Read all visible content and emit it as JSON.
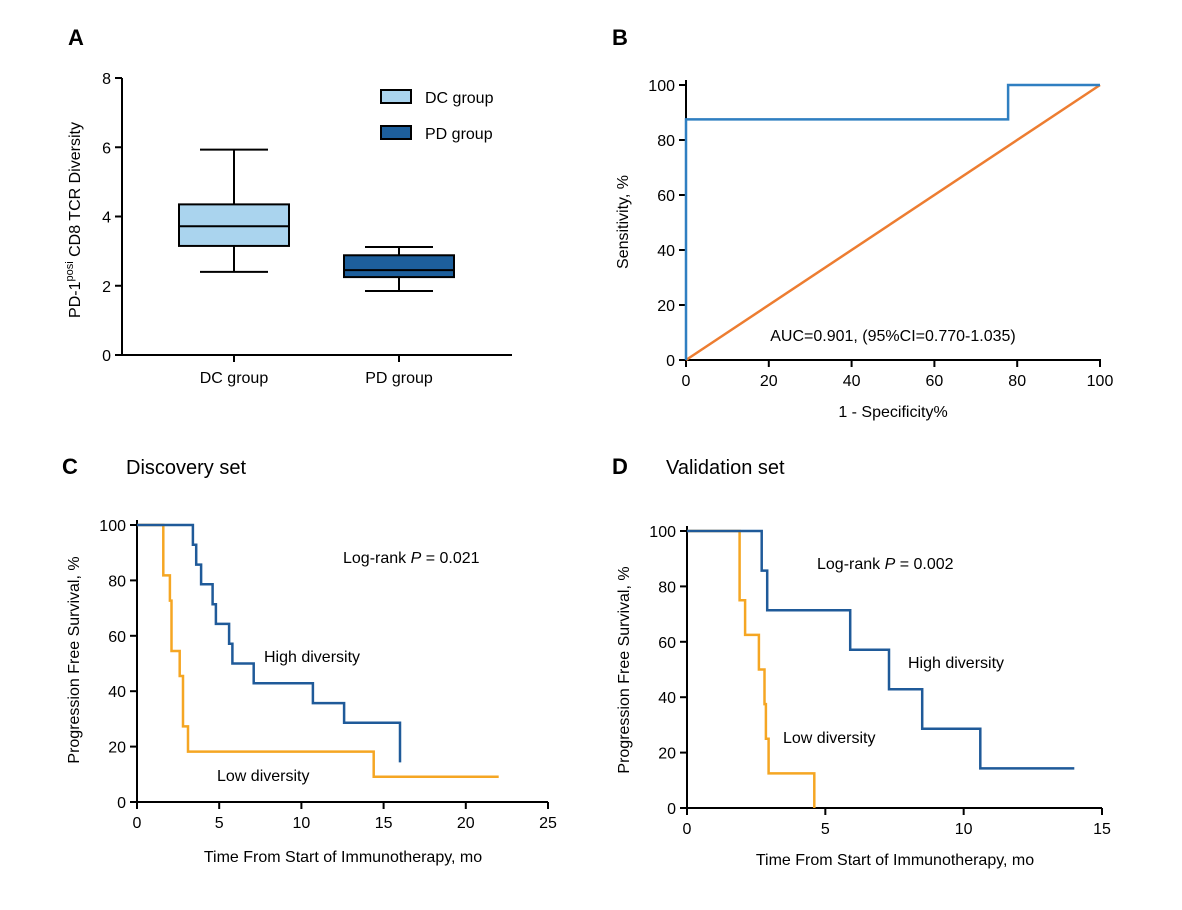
{
  "colors": {
    "dc_fill": "#aad4ee",
    "pd_fill": "#1d5f9c",
    "roc_curve": "#2f7fc1",
    "roc_diag": "#ed7d31",
    "km_high": "#1f5a99",
    "km_low": "#f5a623"
  },
  "chart_data": [
    {
      "panel": "A",
      "type": "box",
      "ylabel_main": "PD-1",
      "ylabel_sup": "posi",
      "ylabel_rest": " CD8 TCR Diversity",
      "xlabel": "",
      "ylim": [
        0,
        8
      ],
      "yticks": [
        0,
        2,
        4,
        6,
        8
      ],
      "categories": [
        "DC group",
        "PD group"
      ],
      "legend": [
        {
          "name": "DC group",
          "color_key": "dc_fill"
        },
        {
          "name": "PD group",
          "color_key": "pd_fill"
        }
      ],
      "boxes": [
        {
          "name": "DC group",
          "min": 2.4,
          "q1": 3.15,
          "median": 3.72,
          "q3": 4.35,
          "max": 5.93
        },
        {
          "name": "PD group",
          "min": 1.85,
          "q1": 2.25,
          "median": 2.45,
          "q3": 2.88,
          "max": 3.12
        }
      ]
    },
    {
      "panel": "B",
      "type": "line",
      "title": "",
      "xlabel": "1 - Specificity%",
      "ylabel": "Sensitivity, %",
      "xlim": [
        0,
        100
      ],
      "ylim": [
        0,
        100
      ],
      "xticks": [
        0,
        20,
        40,
        60,
        80,
        100
      ],
      "yticks": [
        0,
        20,
        40,
        60,
        80,
        100
      ],
      "annotation": "AUC=0.901, (95%CI=0.770-1.035)",
      "series": [
        {
          "name": "ROC",
          "color_key": "roc_curve",
          "points": [
            [
              0,
              0
            ],
            [
              0,
              87.5
            ],
            [
              77.8,
              87.5
            ],
            [
              77.8,
              100
            ],
            [
              100,
              100
            ]
          ]
        },
        {
          "name": "Reference",
          "color_key": "roc_diag",
          "points": [
            [
              0,
              0
            ],
            [
              100,
              100
            ]
          ]
        }
      ]
    },
    {
      "panel": "C",
      "type": "step",
      "title": "Discovery set",
      "xlabel": "Time From Start of Immunotherapy, mo",
      "ylabel": "Progression Free Survival, %",
      "xlim": [
        0,
        25
      ],
      "ylim": [
        0,
        100
      ],
      "xticks": [
        0,
        5,
        10,
        15,
        20,
        25
      ],
      "yticks": [
        0,
        20,
        40,
        60,
        80,
        100
      ],
      "annotation_prefix": "Log-rank ",
      "annotation_p": "P",
      "annotation_value": " = 0.021",
      "series": [
        {
          "name": "High diversity",
          "color_key": "km_high",
          "end": 16.0,
          "steps": [
            [
              3.4,
              92.9
            ],
            [
              3.6,
              85.7
            ],
            [
              3.9,
              78.6
            ],
            [
              4.6,
              71.4
            ],
            [
              4.8,
              64.3
            ],
            [
              5.6,
              57.1
            ],
            [
              5.8,
              50.0
            ],
            [
              7.1,
              42.9
            ],
            [
              10.7,
              35.7
            ],
            [
              12.6,
              28.6
            ],
            [
              16.0,
              14.3
            ]
          ]
        },
        {
          "name": "Low diversity",
          "color_key": "km_low",
          "end": 22.0,
          "steps": [
            [
              1.6,
              81.8
            ],
            [
              2.0,
              72.7
            ],
            [
              2.1,
              54.5
            ],
            [
              2.6,
              45.5
            ],
            [
              2.8,
              27.3
            ],
            [
              3.1,
              18.2
            ],
            [
              14.4,
              9.1
            ]
          ]
        }
      ],
      "series_labels": [
        "High diversity",
        "Low diversity"
      ]
    },
    {
      "panel": "D",
      "type": "step",
      "title": "Validation set",
      "xlabel": "Time From Start of Immunotherapy, mo",
      "ylabel": "Progression Free Survival, %",
      "xlim": [
        0,
        15
      ],
      "ylim": [
        0,
        100
      ],
      "xticks": [
        0,
        5,
        10,
        15
      ],
      "yticks": [
        0,
        20,
        40,
        60,
        80,
        100
      ],
      "annotation_prefix": "Log-rank ",
      "annotation_p": "P",
      "annotation_value": " = 0.002",
      "series": [
        {
          "name": "High diversity",
          "color_key": "km_high",
          "end": 14.0,
          "steps": [
            [
              2.7,
              85.7
            ],
            [
              2.9,
              71.4
            ],
            [
              5.9,
              57.1
            ],
            [
              7.3,
              42.9
            ],
            [
              8.5,
              28.6
            ],
            [
              10.6,
              14.3
            ]
          ]
        },
        {
          "name": "Low diversity",
          "color_key": "km_low",
          "end": 4.6,
          "steps": [
            [
              1.9,
              75.0
            ],
            [
              2.1,
              62.5
            ],
            [
              2.6,
              50.0
            ],
            [
              2.8,
              37.5
            ],
            [
              2.85,
              25.0
            ],
            [
              2.95,
              12.5
            ],
            [
              4.6,
              0
            ]
          ]
        }
      ],
      "series_labels": [
        "High diversity",
        "Low diversity"
      ]
    }
  ]
}
